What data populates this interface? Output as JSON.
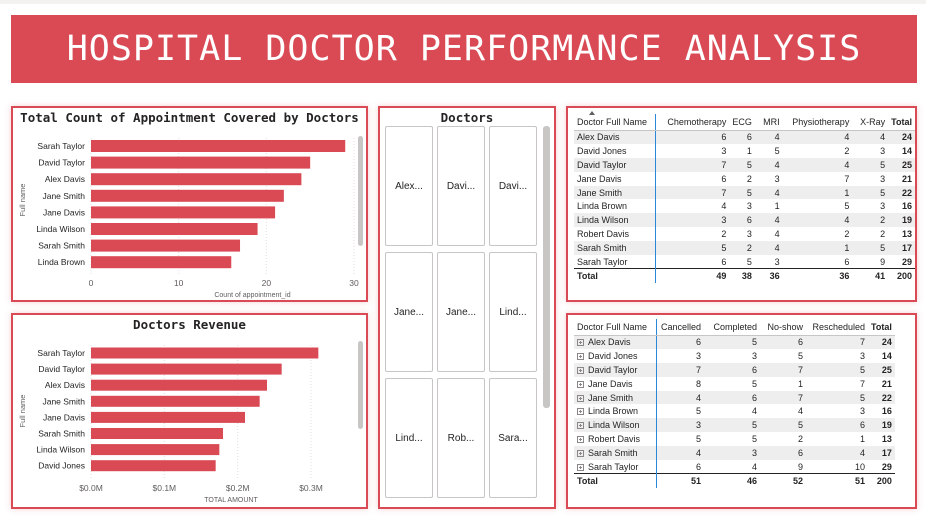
{
  "banner": {
    "title": "HOSPITAL DOCTOR PERFORMANCE ANALYSIS"
  },
  "colors": {
    "accent": "#d94a55",
    "bar": "#d94a55",
    "grid": "#e1dfdd",
    "column_separator": "#2b88d8"
  },
  "appointments_chart": {
    "title": "Total Count of Appointment Covered by Doctors",
    "ylabel": "Full name",
    "xlabel": "Count of appointment_id",
    "ticks": [
      "0",
      "10",
      "20",
      "30"
    ]
  },
  "revenue_chart": {
    "title": "Doctors Revenue",
    "ylabel": "Full name",
    "xlabel": "TOTAL AMOUNT",
    "ticks": [
      "$0.0M",
      "$0.1M",
      "$0.2M",
      "$0.3M"
    ]
  },
  "chart_data": [
    {
      "type": "bar",
      "title": "Total Count of Appointment Covered by Doctors",
      "xlabel": "Count of appointment_id",
      "ylabel": "Full name",
      "categories": [
        "Sarah Taylor",
        "David Taylor",
        "Alex Davis",
        "Jane Smith",
        "Jane Davis",
        "Linda Wilson",
        "Sarah Smith",
        "Linda Brown"
      ],
      "values": [
        29,
        25,
        24,
        22,
        21,
        19,
        17,
        16
      ],
      "xlim": [
        0,
        30
      ],
      "grid": true
    },
    {
      "type": "bar",
      "title": "Doctors Revenue",
      "xlabel": "TOTAL AMOUNT",
      "ylabel": "Full name",
      "categories": [
        "Sarah Taylor",
        "David Taylor",
        "Alex Davis",
        "Jane Smith",
        "Jane Davis",
        "Sarah Smith",
        "Linda Wilson",
        "David Jones"
      ],
      "values": [
        0.31,
        0.26,
        0.24,
        0.23,
        0.21,
        0.18,
        0.175,
        0.17
      ],
      "xlim": [
        0,
        0.3
      ],
      "grid": true
    }
  ],
  "slicer": {
    "title": "Doctors",
    "tiles": [
      "Alex...",
      "Davi...",
      "Davi...",
      "Jane...",
      "Jane...",
      "Lind...",
      "Lind...",
      "Rob...",
      "Sara..."
    ]
  },
  "procedures_table": {
    "headers": [
      "Doctor Full Name",
      "Chemotherapy",
      "ECG",
      "MRI",
      "Physiotherapy",
      "X-Ray",
      "Total"
    ],
    "rows": [
      [
        "Alex Davis",
        "6",
        "6",
        "4",
        "4",
        "4",
        "24"
      ],
      [
        "David Jones",
        "3",
        "1",
        "5",
        "2",
        "3",
        "14"
      ],
      [
        "David Taylor",
        "7",
        "5",
        "4",
        "4",
        "5",
        "25"
      ],
      [
        "Jane Davis",
        "6",
        "2",
        "3",
        "7",
        "3",
        "21"
      ],
      [
        "Jane Smith",
        "7",
        "5",
        "4",
        "1",
        "5",
        "22"
      ],
      [
        "Linda Brown",
        "4",
        "3",
        "1",
        "5",
        "3",
        "16"
      ],
      [
        "Linda Wilson",
        "3",
        "6",
        "4",
        "4",
        "2",
        "19"
      ],
      [
        "Robert Davis",
        "2",
        "3",
        "4",
        "2",
        "2",
        "13"
      ],
      [
        "Sarah Smith",
        "5",
        "2",
        "4",
        "1",
        "5",
        "17"
      ],
      [
        "Sarah Taylor",
        "6",
        "5",
        "3",
        "6",
        "9",
        "29"
      ]
    ],
    "total": [
      "Total",
      "49",
      "38",
      "36",
      "36",
      "41",
      "200"
    ]
  },
  "status_table": {
    "headers": [
      "Doctor Full Name",
      "Cancelled",
      "Completed",
      "No-show",
      "Rescheduled",
      "Total"
    ],
    "rows": [
      [
        "Alex Davis",
        "6",
        "5",
        "6",
        "7",
        "24"
      ],
      [
        "David Jones",
        "3",
        "3",
        "5",
        "3",
        "14"
      ],
      [
        "David Taylor",
        "7",
        "6",
        "7",
        "5",
        "25"
      ],
      [
        "Jane Davis",
        "8",
        "5",
        "1",
        "7",
        "21"
      ],
      [
        "Jane Smith",
        "4",
        "6",
        "7",
        "5",
        "22"
      ],
      [
        "Linda Brown",
        "5",
        "4",
        "4",
        "3",
        "16"
      ],
      [
        "Linda Wilson",
        "3",
        "5",
        "5",
        "6",
        "19"
      ],
      [
        "Robert Davis",
        "5",
        "5",
        "2",
        "1",
        "13"
      ],
      [
        "Sarah Smith",
        "4",
        "3",
        "6",
        "4",
        "17"
      ],
      [
        "Sarah Taylor",
        "6",
        "4",
        "9",
        "10",
        "29"
      ]
    ],
    "total": [
      "Total",
      "51",
      "46",
      "52",
      "51",
      "200"
    ]
  }
}
